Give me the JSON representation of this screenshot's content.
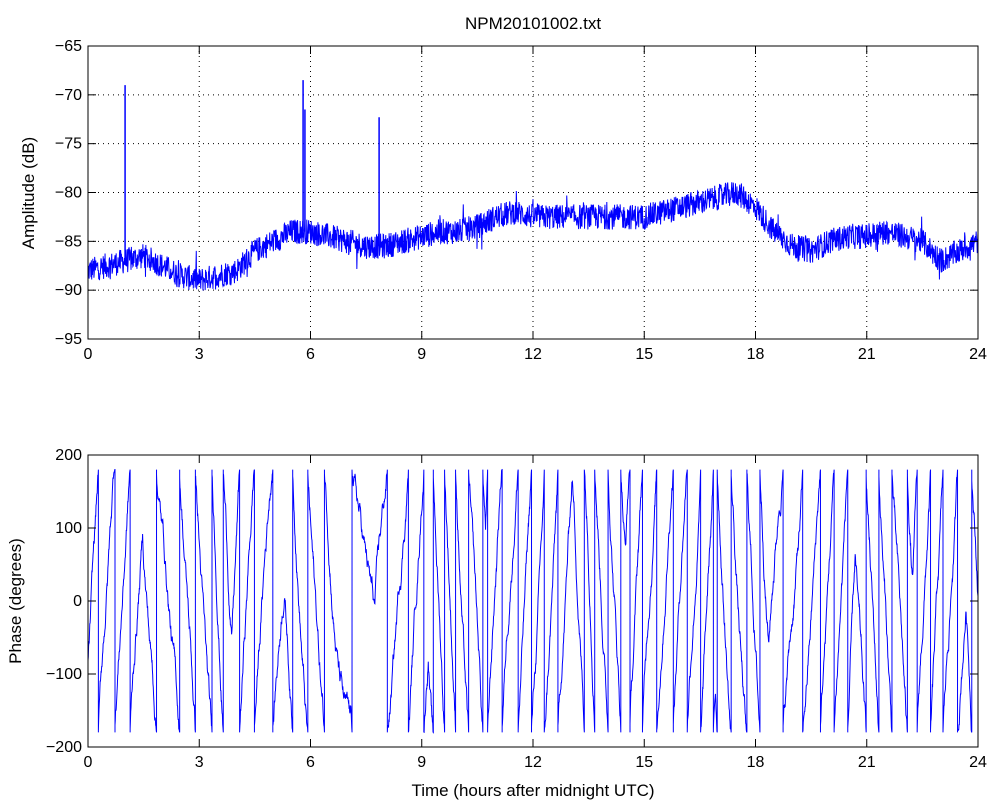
{
  "figure": {
    "background": "#ffffff",
    "line_color": "#0000ff"
  },
  "chart_data": [
    {
      "type": "line",
      "title": "NPM20101002.txt",
      "xlabel": "",
      "ylabel": "Amplitude (dB)",
      "xlim": [
        0,
        24
      ],
      "ylim": [
        -95,
        -65
      ],
      "xticks": [
        0,
        3,
        6,
        9,
        12,
        15,
        18,
        21,
        24
      ],
      "yticks": [
        -95,
        -90,
        -85,
        -80,
        -75,
        -70,
        -65
      ],
      "grid": true,
      "series": [
        {
          "color": "#0000ff",
          "x": [
            0,
            0.5,
            1,
            1.5,
            2,
            2.5,
            3,
            3.5,
            4,
            4.5,
            5,
            5.5,
            6,
            6.5,
            7,
            7.5,
            8,
            8.5,
            9,
            9.5,
            10,
            10.5,
            11,
            11.5,
            12,
            12.5,
            13,
            13.5,
            14,
            14.5,
            15,
            15.5,
            16,
            16.5,
            17,
            17.5,
            18,
            18.5,
            19,
            19.5,
            20,
            20.5,
            21,
            21.5,
            22,
            22.5,
            23,
            23.5,
            24
          ],
          "y": [
            -88,
            -87.5,
            -87,
            -86.5,
            -87.5,
            -88.5,
            -89,
            -88.5,
            -88,
            -86,
            -85,
            -84,
            -84,
            -84.5,
            -85,
            -85.5,
            -85.5,
            -85,
            -84.5,
            -84,
            -84,
            -83.5,
            -82.5,
            -82,
            -82.5,
            -82.5,
            -82.5,
            -82.5,
            -82.5,
            -82.5,
            -82.5,
            -82,
            -81.5,
            -81,
            -80.5,
            -80,
            -81.5,
            -84,
            -85.5,
            -86,
            -85,
            -84.5,
            -84.5,
            -84,
            -84.5,
            -85,
            -87,
            -86,
            -85
          ],
          "spikes": [
            {
              "x": 1.0,
              "y": -69
            },
            {
              "x": 5.8,
              "y": -68.5
            },
            {
              "x": 5.85,
              "y": -71.5
            },
            {
              "x": 7.85,
              "y": -72.3
            }
          ]
        }
      ]
    },
    {
      "type": "line",
      "title": "",
      "xlabel": "Time (hours after midnight UTC)",
      "ylabel": "Phase (degrees)",
      "xlim": [
        0,
        24
      ],
      "ylim": [
        -200,
        200
      ],
      "xticks": [
        0,
        3,
        6,
        9,
        12,
        15,
        18,
        21,
        24
      ],
      "yticks": [
        -200,
        -100,
        0,
        100,
        200
      ],
      "grid": false,
      "series": [
        {
          "color": "#0000ff",
          "wrap": [
            -180,
            180
          ],
          "x": [
            0,
            1,
            2,
            3,
            4,
            5,
            6,
            7,
            8,
            9,
            10,
            11,
            12,
            13,
            14,
            15,
            16,
            17,
            18,
            19,
            20,
            21,
            22,
            23,
            24
          ],
          "rate_deg_per_hour": [
            800,
            900,
            500,
            950,
            1000,
            700,
            900,
            350,
            450,
            1050,
            1100,
            1000,
            900,
            950,
            900,
            1000,
            1050,
            900,
            950,
            550,
            950,
            1050,
            1000,
            900,
            900
          ]
        }
      ]
    }
  ]
}
